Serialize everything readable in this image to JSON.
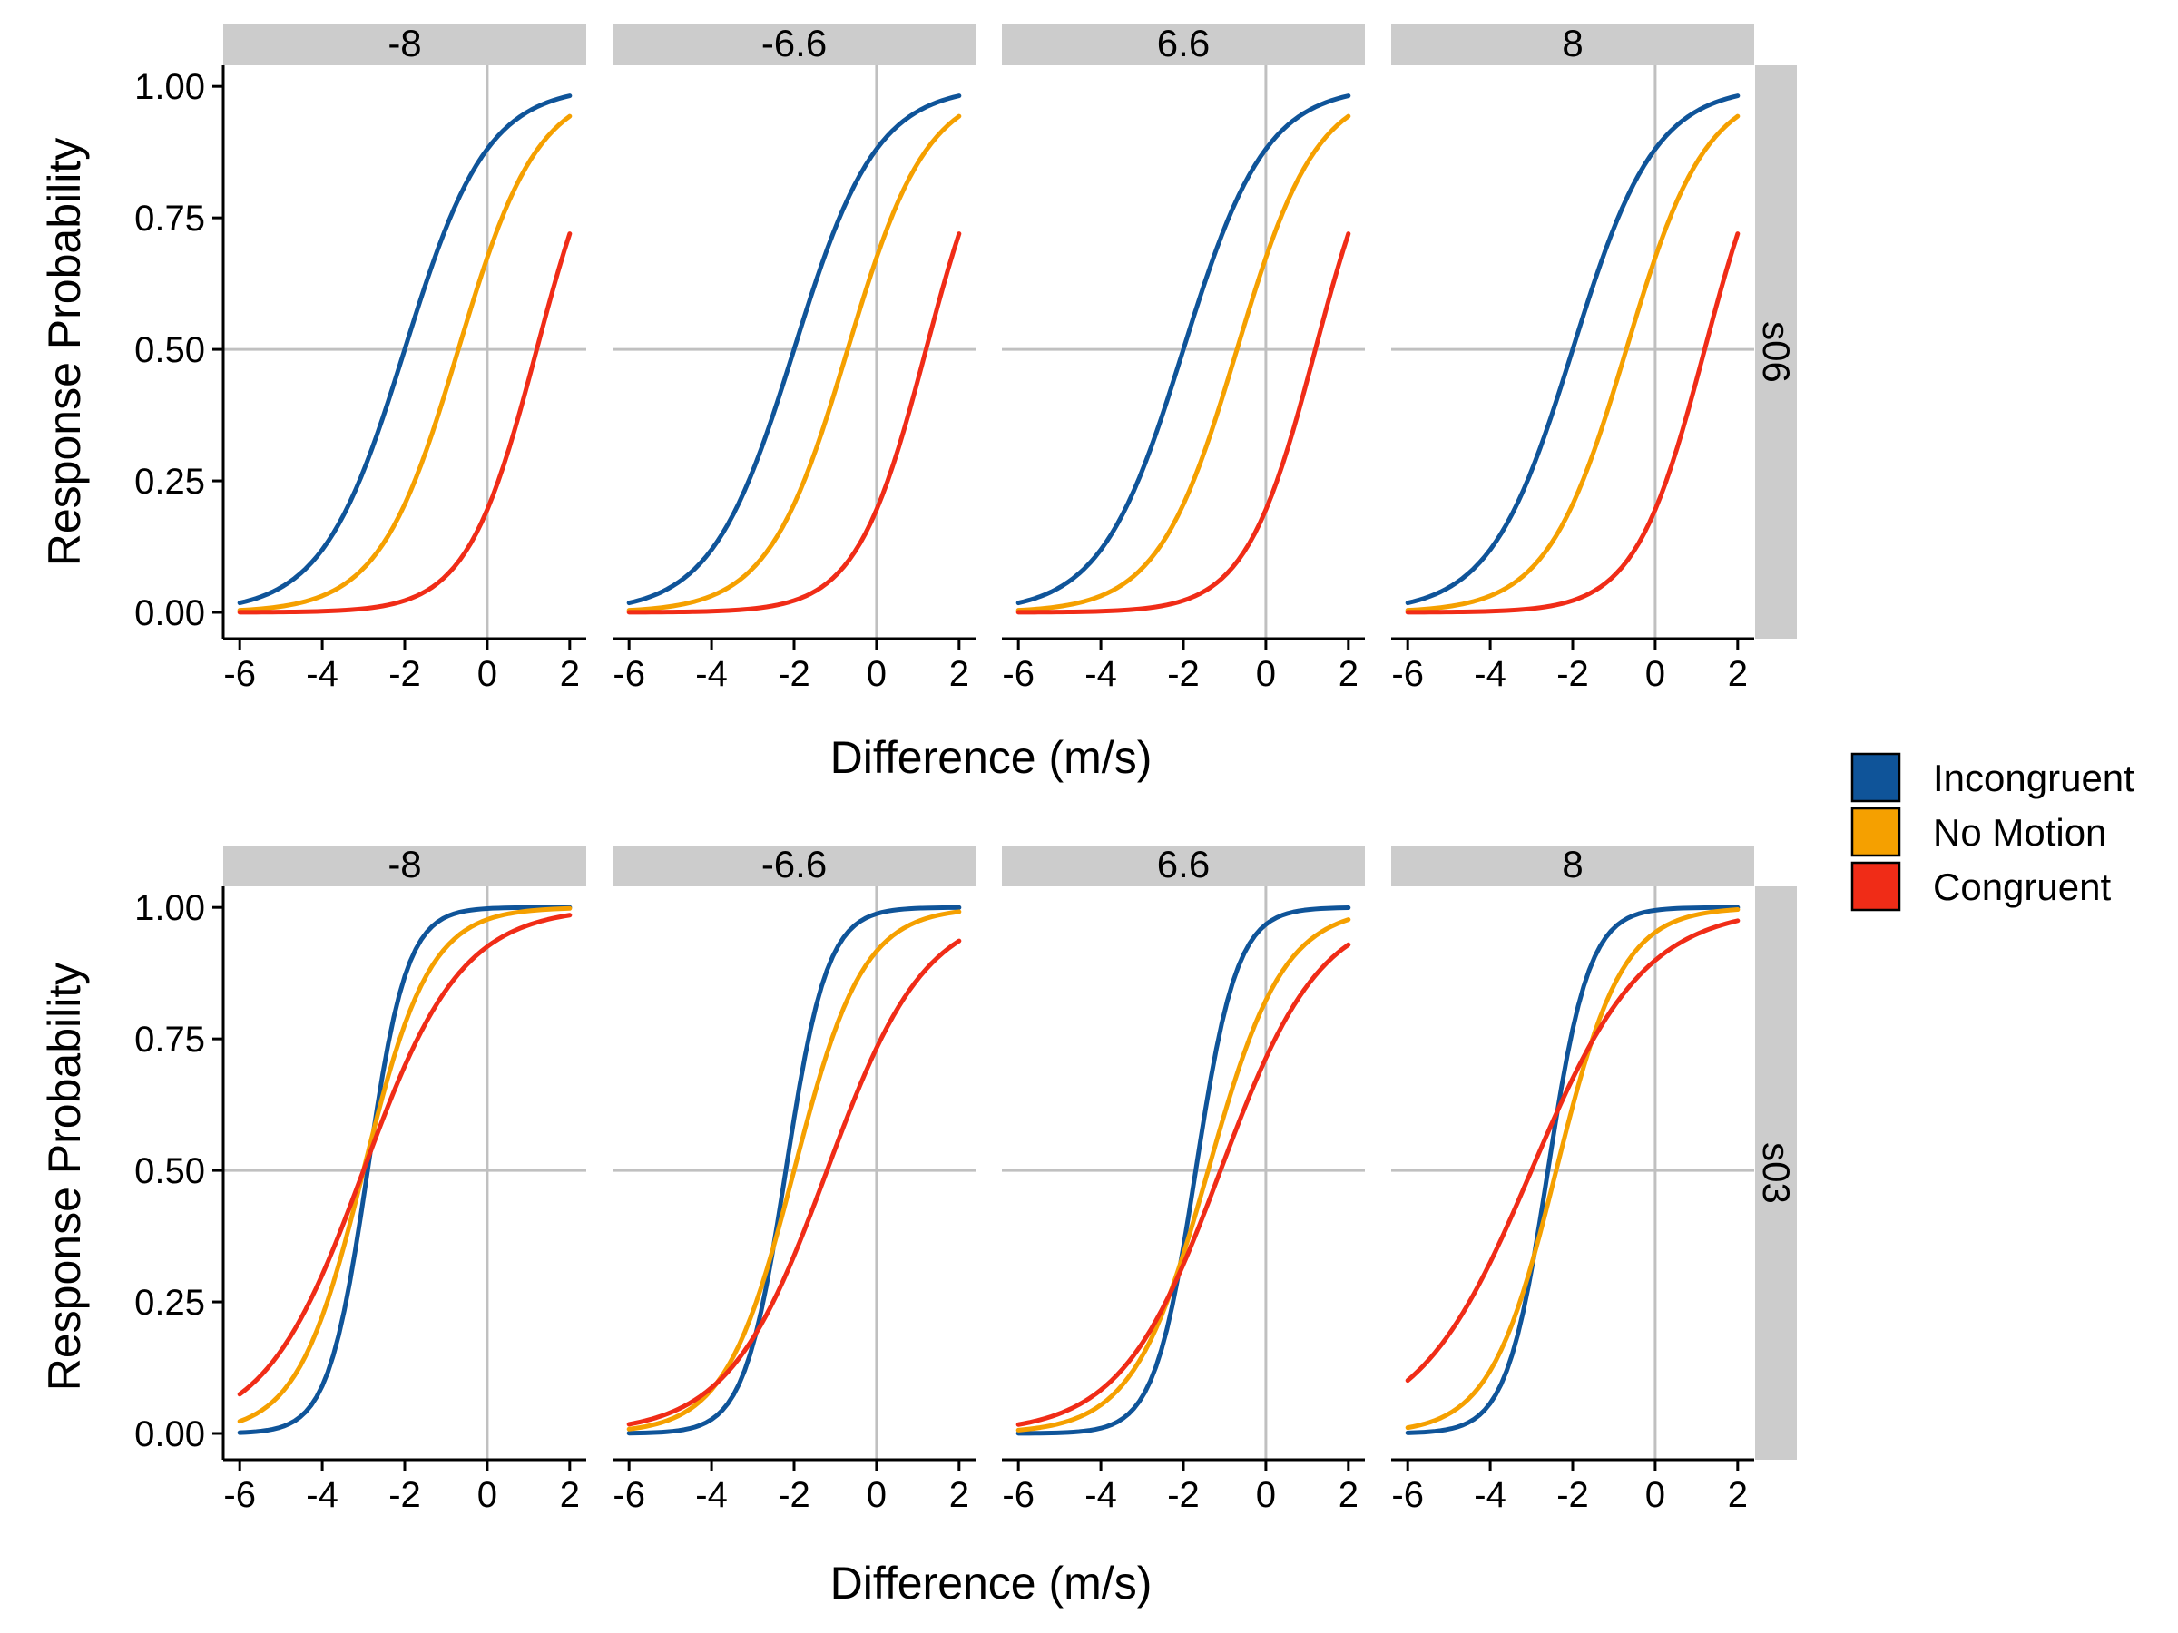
{
  "chart_data": {
    "type": "line",
    "xlabel": "Difference (m/s)",
    "ylabel": "Response Probability",
    "xlim": [
      -6.4,
      2.4
    ],
    "ylim": [
      -0.05,
      1.04
    ],
    "x_ticks": [
      -6,
      -4,
      -2,
      0,
      2
    ],
    "x_tick_labels": [
      "-6",
      "-4",
      "-2",
      "0",
      "2"
    ],
    "y_ticks": [
      0,
      0.25,
      0.5,
      0.75,
      1
    ],
    "y_tick_labels": [
      "0.00",
      "0.25",
      "0.50",
      "0.75",
      "1.00"
    ],
    "x_range": [
      -6,
      2
    ],
    "column_facets": [
      "-8",
      "-6.6",
      "6.6",
      "8"
    ],
    "row_facets": [
      "s06",
      "s03"
    ],
    "reference_lines": {
      "x": 0,
      "y": 0.5
    },
    "legend": {
      "placement": "right",
      "items": [
        {
          "name": "Incongruent",
          "color": "#0F5499"
        },
        {
          "name": "No Motion",
          "color": "#F5A000"
        },
        {
          "name": "Congruent",
          "color": "#F02C17"
        }
      ]
    },
    "panels": [
      {
        "row": "s06",
        "column": "-8",
        "curves": [
          {
            "name": "Incongruent",
            "pse": -2.0,
            "slope": 1.0
          },
          {
            "name": "No Motion",
            "pse": -0.7,
            "slope": 1.04
          },
          {
            "name": "Congruent",
            "pse": 1.2,
            "slope": 1.18
          }
        ]
      },
      {
        "row": "s06",
        "column": "-6.6",
        "curves": [
          {
            "name": "Incongruent",
            "pse": -2.0,
            "slope": 1.0
          },
          {
            "name": "No Motion",
            "pse": -0.7,
            "slope": 1.04
          },
          {
            "name": "Congruent",
            "pse": 1.2,
            "slope": 1.18
          }
        ]
      },
      {
        "row": "s06",
        "column": "6.6",
        "curves": [
          {
            "name": "Incongruent",
            "pse": -2.0,
            "slope": 1.0
          },
          {
            "name": "No Motion",
            "pse": -0.7,
            "slope": 1.04
          },
          {
            "name": "Congruent",
            "pse": 1.2,
            "slope": 1.18
          }
        ]
      },
      {
        "row": "s06",
        "column": "8",
        "curves": [
          {
            "name": "Incongruent",
            "pse": -2.0,
            "slope": 1.0
          },
          {
            "name": "No Motion",
            "pse": -0.7,
            "slope": 1.04
          },
          {
            "name": "Congruent",
            "pse": 1.2,
            "slope": 1.18
          }
        ]
      },
      {
        "row": "s03",
        "column": "-8",
        "curves": [
          {
            "name": "Incongruent",
            "pse": -2.9,
            "slope": 2.1
          },
          {
            "name": "No Motion",
            "pse": -3.0,
            "slope": 1.25
          },
          {
            "name": "Congruent",
            "pse": -3.0,
            "slope": 0.84
          }
        ]
      },
      {
        "row": "s03",
        "column": "-6.6",
        "curves": [
          {
            "name": "Incongruent",
            "pse": -2.2,
            "slope": 2.0
          },
          {
            "name": "No Motion",
            "pse": -2.0,
            "slope": 1.2
          },
          {
            "name": "Congruent",
            "pse": -1.2,
            "slope": 0.84
          }
        ]
      },
      {
        "row": "s03",
        "column": "6.6",
        "curves": [
          {
            "name": "Incongruent",
            "pse": -1.7,
            "slope": 2.0
          },
          {
            "name": "No Motion",
            "pse": -1.4,
            "slope": 1.1
          },
          {
            "name": "Congruent",
            "pse": -1.1,
            "slope": 0.83
          }
        ]
      },
      {
        "row": "s03",
        "column": "8",
        "curves": [
          {
            "name": "Incongruent",
            "pse": -2.6,
            "slope": 2.0
          },
          {
            "name": "No Motion",
            "pse": -2.4,
            "slope": 1.25
          },
          {
            "name": "Congruent",
            "pse": -3.0,
            "slope": 0.73
          }
        ]
      }
    ]
  }
}
